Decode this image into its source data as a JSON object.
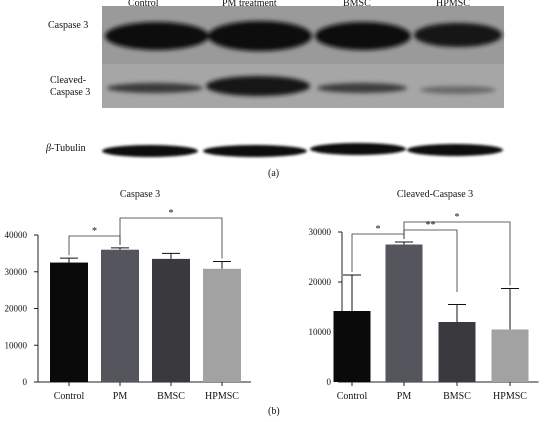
{
  "figure": {
    "panel_a_label": "(a)",
    "panel_b_label": "(b)",
    "blot": {
      "lanes": [
        "Control",
        "PM treatment",
        "BMSC",
        "HPMSC"
      ],
      "rows": [
        {
          "label": "Caspase 3"
        },
        {
          "label_line1": "Cleaved-",
          "label_line2": "Caspase 3"
        },
        {
          "label_italic": "β",
          "label_rest": "-Tubulin"
        }
      ]
    }
  },
  "chart_data": [
    {
      "type": "bar",
      "title": "Caspase 3",
      "categories": [
        "Control",
        "PM",
        "BMSC",
        "HPMSC"
      ],
      "values": [
        32500,
        36000,
        33500,
        30800
      ],
      "errors": [
        1200,
        500,
        1500,
        2000
      ],
      "ylim": [
        0,
        40000
      ],
      "yticks": [
        "0",
        "10000",
        "20000",
        "30000",
        "40000"
      ],
      "colors": [
        "#0a0a0a",
        "#55555e",
        "#3a3a3e",
        "#a2a2a2"
      ],
      "significance": [
        {
          "from": 0,
          "to": 1,
          "label": "*"
        },
        {
          "from": 1,
          "to": 3,
          "label": "*"
        }
      ]
    },
    {
      "type": "bar",
      "title": "Cleaved-Caspase 3",
      "categories": [
        "Control",
        "PM",
        "BMSC",
        "HPMSC"
      ],
      "values": [
        14200,
        27500,
        12000,
        10500
      ],
      "errors": [
        7200,
        500,
        3500,
        8200
      ],
      "ylim": [
        0,
        30000
      ],
      "yticks": [
        "0",
        "10000",
        "20000",
        "30000"
      ],
      "colors": [
        "#0a0a0a",
        "#55555e",
        "#3a3a3e",
        "#a2a2a2"
      ],
      "significance": [
        {
          "from": 0,
          "to": 1,
          "label": "*"
        },
        {
          "from": 1,
          "to": 2,
          "label": "**"
        },
        {
          "from": 1,
          "to": 3,
          "label": "*"
        }
      ]
    }
  ]
}
